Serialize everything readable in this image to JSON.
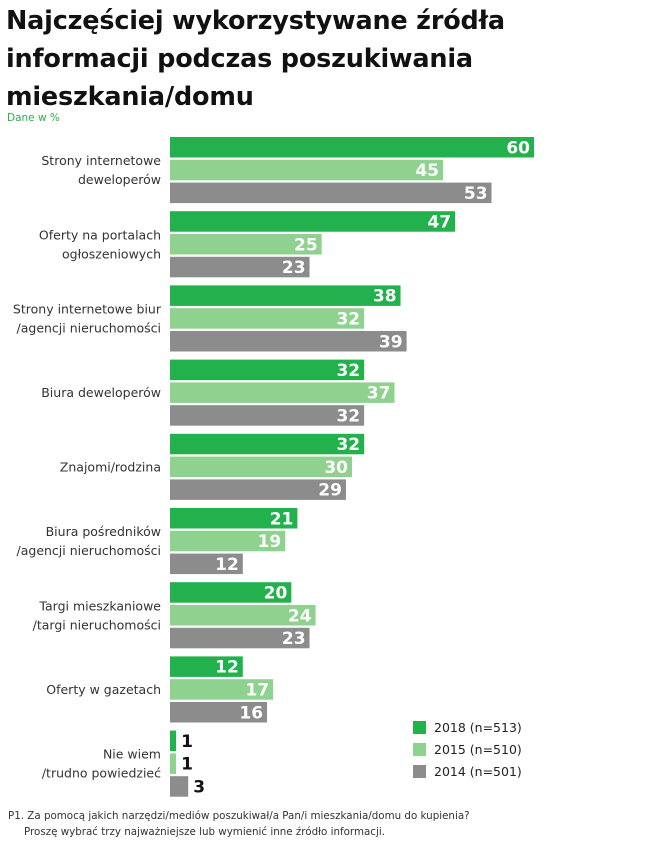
{
  "header": {
    "title": "Najczęściej wykorzystywane źródła informacji podczas poszukiwania mieszkania/domu",
    "unit_note": "Dane w %"
  },
  "chart_data": {
    "type": "bar",
    "orientation": "horizontal",
    "title": "Najczęściej wykorzystywane źródła informacji podczas poszukiwania mieszkania/domu",
    "xlabel": "",
    "ylabel": "",
    "unit": "%",
    "xlim": [
      0,
      60
    ],
    "grid": false,
    "legend_position": "bottom-right",
    "categories": [
      [
        "Strony internetowe",
        "deweloperów"
      ],
      [
        "Oferty na portalach",
        "ogłoszeniowych"
      ],
      [
        "Strony internetowe biur",
        "/agencji nieruchomości"
      ],
      [
        "Biura deweloperów"
      ],
      [
        "Znajomi/rodzina"
      ],
      [
        "Biura pośredników",
        "/agencji nieruchomości"
      ],
      [
        "Targi mieszkaniowe",
        "/targi nieruchomości"
      ],
      [
        "Oferty w gazetach"
      ],
      [
        "Nie wiem",
        "/trudno powiedzieć"
      ]
    ],
    "series": [
      {
        "name": "2018 (n=513)",
        "color": "#22b14c",
        "label_color": "#ffffff",
        "values": [
          60,
          47,
          38,
          32,
          32,
          21,
          20,
          12,
          1
        ]
      },
      {
        "name": "2015 (n=510)",
        "color": "#8fd18e",
        "label_color": "#ffffff",
        "values": [
          45,
          25,
          32,
          37,
          30,
          19,
          24,
          17,
          1
        ]
      },
      {
        "name": "2014 (n=501)",
        "color": "#8c8c8c",
        "label_color": "#ffffff",
        "values": [
          53,
          23,
          39,
          32,
          29,
          12,
          23,
          16,
          3
        ]
      }
    ],
    "outside_label_color": "#111111"
  },
  "legend": {
    "items": [
      {
        "label": "2018 (n=513)",
        "color": "#22b14c"
      },
      {
        "label": "2015 (n=510)",
        "color": "#8fd18e"
      },
      {
        "label": "2014 (n=501)",
        "color": "#8c8c8c"
      }
    ]
  },
  "footnote": {
    "line1": "P1. Za pomocą jakich narzędzi/mediów poszukiwał/a Pan/i mieszkania/domu do kupienia?",
    "line2": "Proszę wybrać trzy najważniejsze lub wymienić inne źródło informacji."
  }
}
